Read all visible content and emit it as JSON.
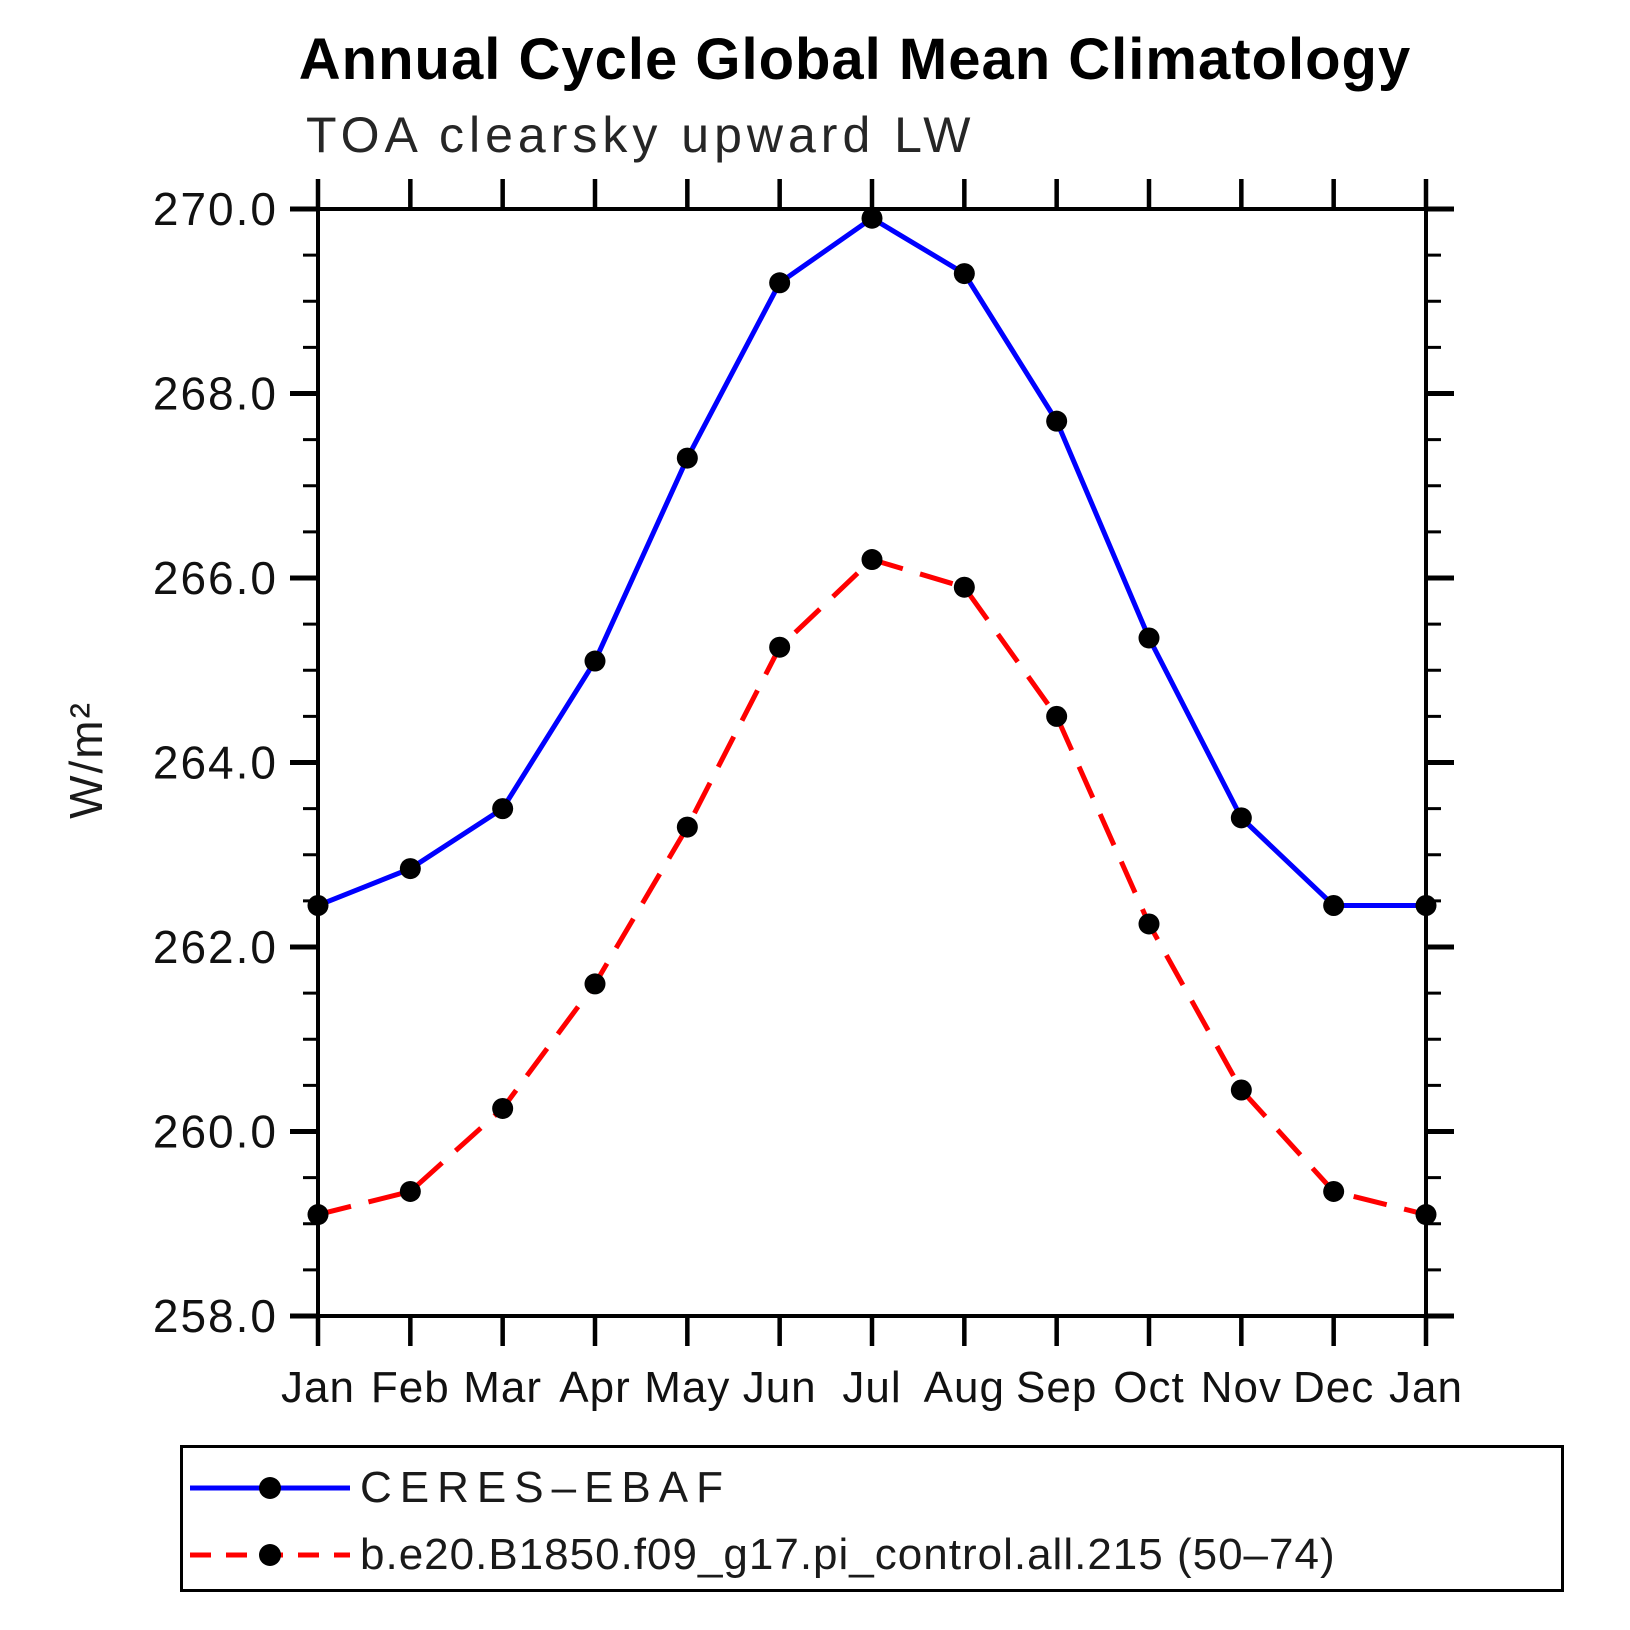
{
  "page": {
    "background": "#ffffff"
  },
  "chart": {
    "title": "Annual Cycle Global Mean Climatology",
    "subtitle": "TOA clearsky upward LW",
    "ylabel": "W/m²"
  },
  "chart_data": {
    "type": "line",
    "categories": [
      "Jan",
      "Feb",
      "Mar",
      "Apr",
      "May",
      "Jun",
      "Jul",
      "Aug",
      "Sep",
      "Oct",
      "Nov",
      "Dec",
      "Jan"
    ],
    "series": [
      {
        "name": "CERES–EBAF",
        "color": "#0000ff",
        "style": "solid",
        "marker": "filled-circle",
        "marker_color": "#000000",
        "values": [
          262.45,
          262.85,
          263.5,
          265.1,
          267.3,
          269.2,
          269.9,
          269.3,
          267.7,
          265.35,
          263.4,
          262.45,
          262.45
        ]
      },
      {
        "name": "b.e20.B1850.f09_g17.pi_control.all.215 (50–74)",
        "color": "#ff0000",
        "style": "dashed",
        "marker": "filled-circle",
        "marker_color": "#000000",
        "values": [
          259.1,
          259.35,
          260.25,
          261.6,
          263.3,
          265.25,
          266.2,
          265.9,
          264.5,
          262.25,
          260.45,
          259.35,
          259.1
        ]
      }
    ],
    "ylim": [
      258.0,
      270.0
    ],
    "ytick_values": [
      270,
      268,
      266,
      264,
      262,
      260,
      258
    ],
    "ytick_labels": [
      "270.0",
      "268.0",
      "266.0",
      "264.0",
      "262.0",
      "260.0",
      "258.0"
    ],
    "yminor_step": 0.5,
    "xlabel": "",
    "grid": false,
    "axis_color": "#000000",
    "legend_position": "bottom-left"
  }
}
